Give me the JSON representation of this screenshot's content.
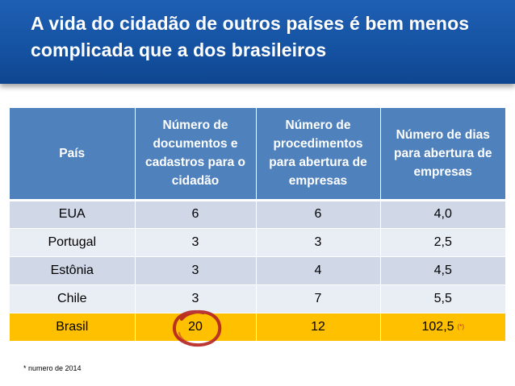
{
  "slide": {
    "title": "A vida do cidadão de outros países é bem menos complicada que a dos brasileiros"
  },
  "table": {
    "headers": [
      "País",
      "Número de documentos e cadastros para o cidadão",
      "Número de procedimentos para abertura de empresas",
      "Número de dias para abertura de empresas"
    ],
    "rows": [
      [
        "EUA",
        "6",
        "6",
        "4,0"
      ],
      [
        "Portugal",
        "3",
        "3",
        "2,5"
      ],
      [
        "Estônia",
        "3",
        "4",
        "4,5"
      ],
      [
        "Chile",
        "3",
        "7",
        "5,5"
      ],
      [
        "Brasil",
        "20",
        "12",
        "102,5"
      ]
    ],
    "highlight_row_note": "(*)",
    "colors": {
      "header": "#4f81bd",
      "row_odd": "#d0d8e8",
      "row_even": "#e9edf4",
      "highlight": "#ffc000",
      "circle": "#b22222"
    }
  },
  "footnote": "* numero de 2014"
}
